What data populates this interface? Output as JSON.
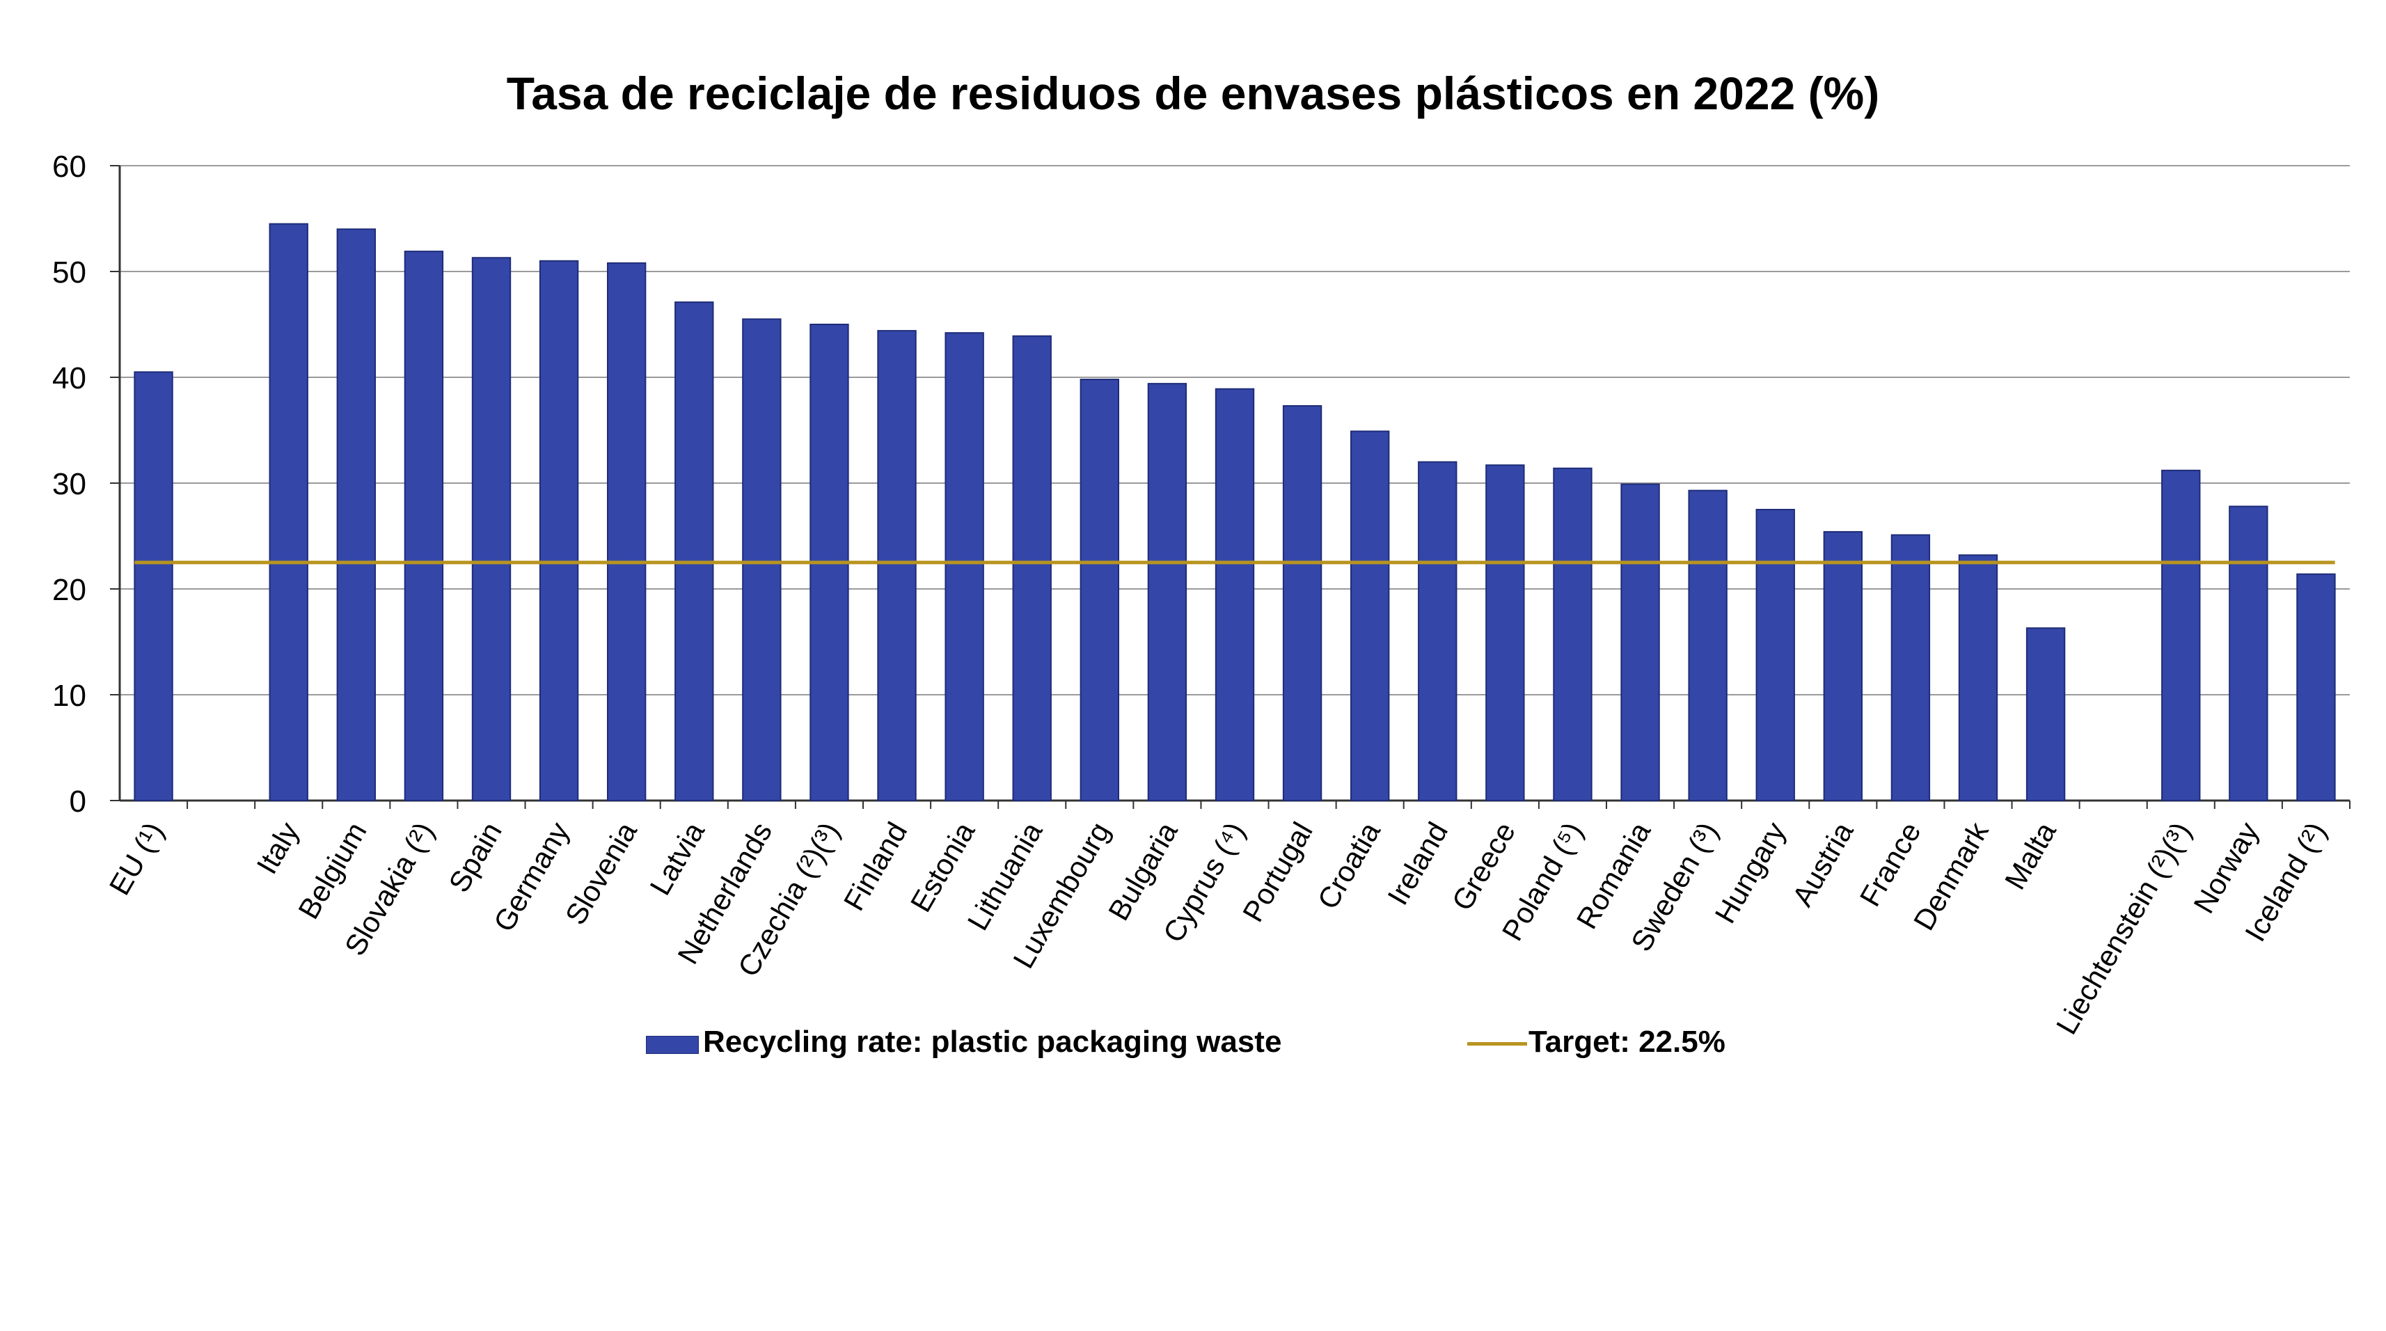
{
  "chart_data": {
    "type": "bar",
    "title": "Tasa de reciclaje de residuos de envases plásticos en 2022 (%)",
    "xlabel": "",
    "ylabel": "",
    "ylim": [
      0,
      60
    ],
    "yticks": [
      0,
      10,
      20,
      30,
      40,
      50,
      60
    ],
    "grid": true,
    "categories": [
      "EU (¹)",
      "",
      "Italy",
      "Belgium",
      "Slovakia (²)",
      "Spain",
      "Germany",
      "Slovenia",
      "Latvia",
      "Netherlands",
      "Czechia (²)(³)",
      "Finland",
      "Estonia",
      "Lithuania",
      "Luxembourg",
      "Bulgaria",
      "Cyprus (⁴)",
      "Portugal",
      "Croatia",
      "Ireland",
      "Greece",
      "Poland (⁵)",
      "Romania",
      "Sweden (³)",
      "Hungary",
      "Austria",
      "France",
      "Denmark",
      "Malta",
      "",
      "Liechtenstein (²)(³)",
      "Norway",
      "Iceland (²)"
    ],
    "series": [
      {
        "name": "Recycling rate: plastic packaging waste",
        "kind": "bar",
        "color": "#3447a8",
        "values": [
          40.5,
          null,
          54.5,
          54.0,
          51.9,
          51.3,
          51.0,
          50.8,
          47.1,
          45.5,
          45.0,
          44.4,
          44.2,
          43.9,
          39.8,
          39.4,
          38.9,
          37.3,
          34.9,
          32.0,
          31.7,
          31.4,
          29.9,
          29.3,
          27.5,
          25.4,
          25.1,
          23.2,
          16.3,
          null,
          31.2,
          27.8,
          21.4
        ]
      },
      {
        "name": "Target: 22.5%",
        "kind": "line",
        "color": "#b8941f",
        "value": 22.5
      }
    ],
    "legend_position": "bottom-center"
  }
}
